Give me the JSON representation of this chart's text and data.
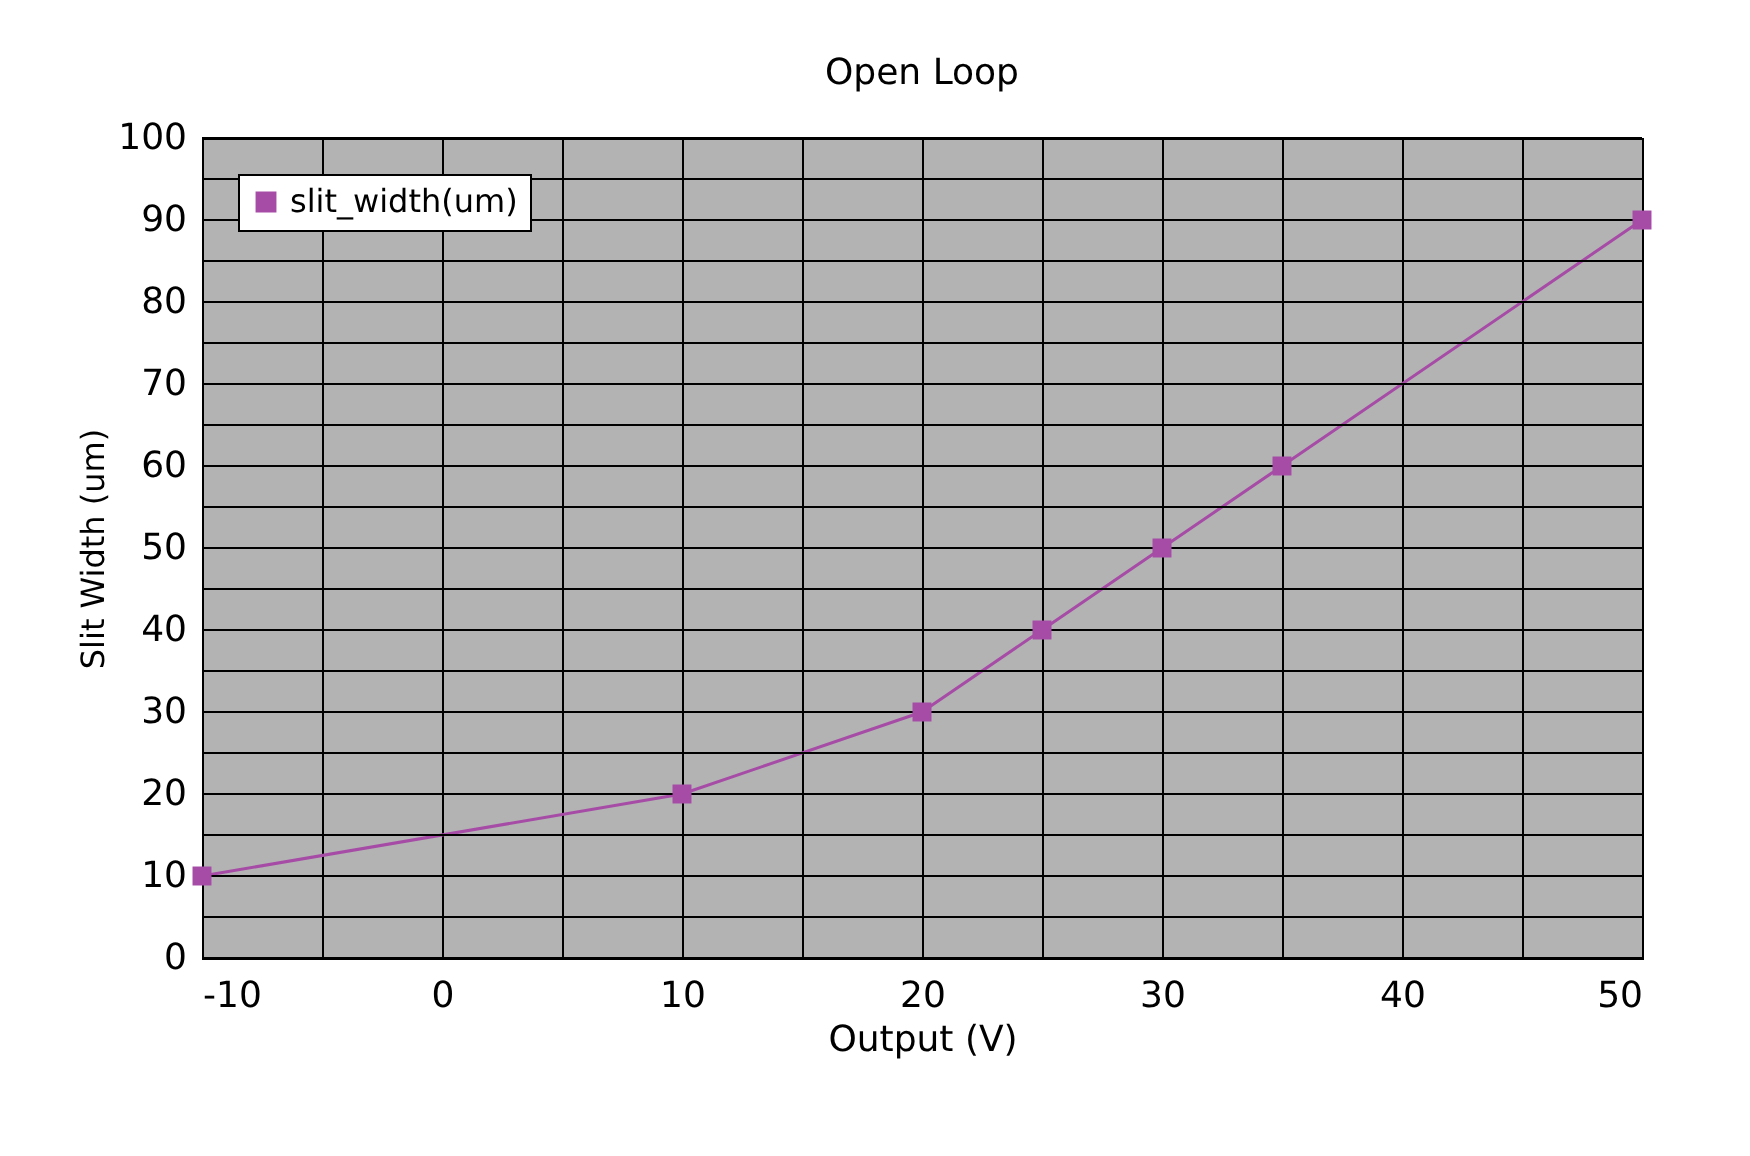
{
  "chart_data": {
    "type": "line",
    "title": "Open Loop",
    "xlabel": "Output (V)",
    "ylabel": "Slit Width (um)",
    "x": [
      -10,
      10,
      20,
      25,
      30,
      35,
      50
    ],
    "series": [
      {
        "name": "slit_width(um)",
        "color": "#a64ca6",
        "values": [
          10,
          20,
          30,
          40,
          50,
          60,
          90
        ]
      }
    ],
    "xlim": [
      -10,
      50
    ],
    "xticks": [
      -10,
      {
        "value": -5,
        "label": null
      },
      0,
      {
        "value": 5,
        "label": null
      },
      10,
      {
        "value": 15,
        "label": null
      },
      20,
      {
        "value": 25,
        "label": null
      },
      30,
      {
        "value": 35,
        "label": null
      },
      40,
      {
        "value": 45,
        "label": null
      },
      50
    ],
    "ylim": [
      0,
      100
    ],
    "yticks": [
      0,
      {
        "value": 5,
        "label": null
      },
      10,
      {
        "value": 15,
        "label": null
      },
      20,
      {
        "value": 25,
        "label": null
      },
      30,
      {
        "value": 35,
        "label": null
      },
      40,
      {
        "value": 45,
        "label": null
      },
      50,
      {
        "value": 55,
        "label": null
      },
      60,
      {
        "value": 65,
        "label": null
      },
      70,
      {
        "value": 75,
        "label": null
      },
      80,
      {
        "value": 85,
        "label": null
      },
      90,
      {
        "value": 95,
        "label": null
      },
      100
    ],
    "grid": true,
    "legend": "top left",
    "marker": "square",
    "line_style": "solid"
  }
}
